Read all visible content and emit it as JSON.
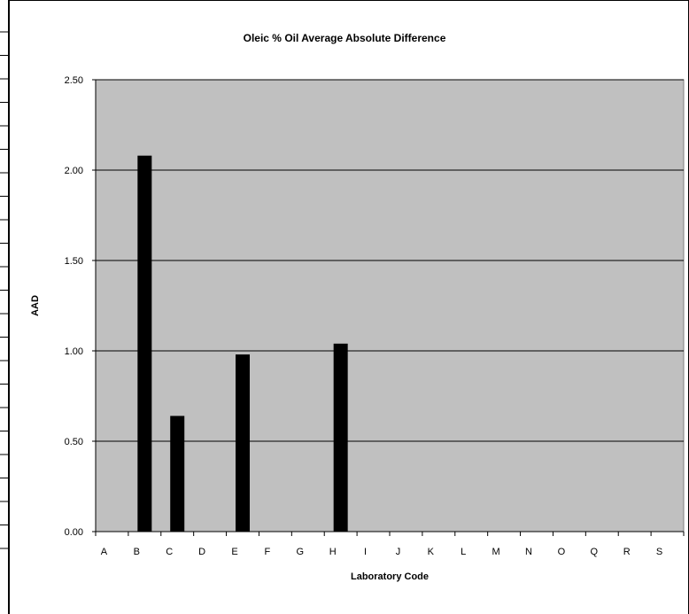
{
  "chart_data": {
    "type": "bar",
    "title": "Oleic % Oil Average Absolute Difference",
    "xlabel": "Laboratory Code",
    "ylabel": "AAD",
    "categories": [
      "A",
      "B",
      "C",
      "D",
      "E",
      "F",
      "G",
      "H",
      "I",
      "J",
      "K",
      "L",
      "M",
      "N",
      "O",
      "Q",
      "R",
      "S"
    ],
    "values": [
      0,
      2.08,
      0.64,
      0,
      0.98,
      0,
      0,
      1.04,
      0,
      0,
      0,
      0,
      0,
      0,
      0,
      0,
      0,
      0
    ],
    "ylim": [
      0,
      2.5
    ],
    "yticks": [
      "0.00",
      "0.50",
      "1.00",
      "1.50",
      "2.00",
      "2.50"
    ],
    "grid": true,
    "legend": "none",
    "colors": {
      "plot_background": "#c0c0c0",
      "bar": "#000000",
      "gridline": "#000000"
    }
  }
}
